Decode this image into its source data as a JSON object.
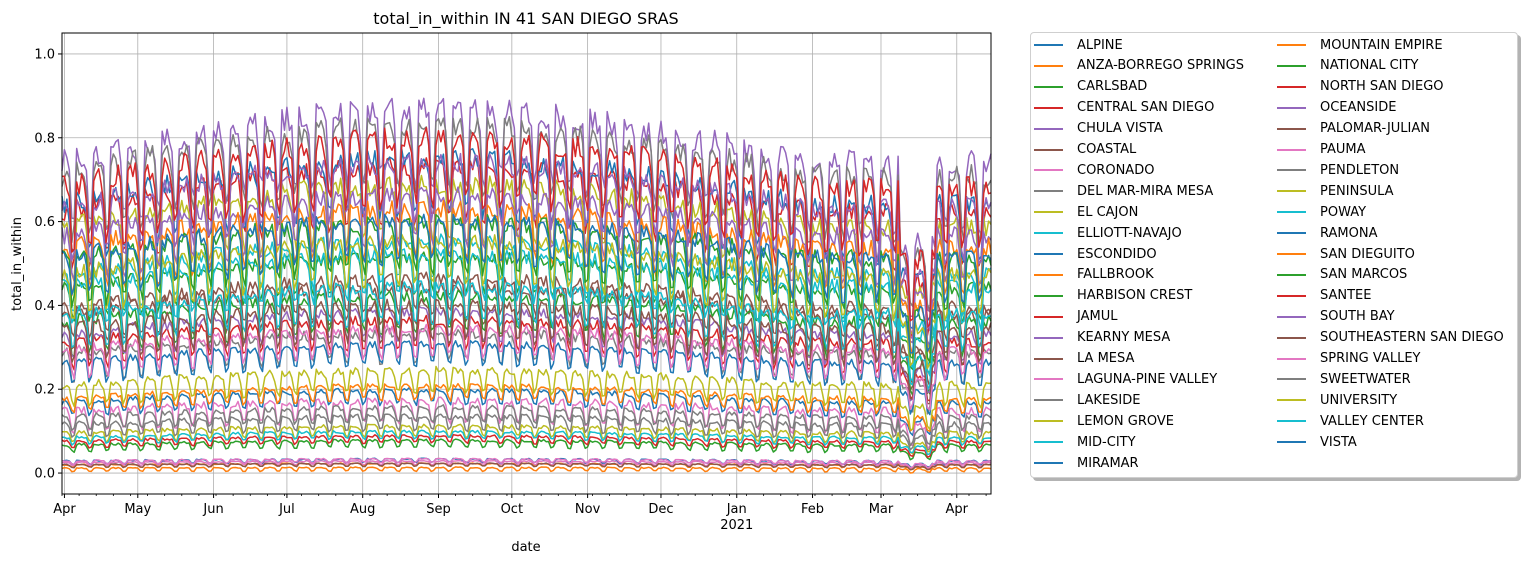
{
  "chart_data": {
    "type": "line",
    "title": "total_in_within IN 41 SAN DIEGO SRAS",
    "xlabel": "date",
    "ylabel": "total_in_within",
    "xlim": [
      "2020-03-31",
      "2021-04-15"
    ],
    "ylim": [
      -0.05,
      1.05
    ],
    "grid": true,
    "legend_position": "outside-right",
    "legend_columns": 2,
    "x_ticks": [
      {
        "date": "2020-04-01",
        "label": "Apr",
        "sub": ""
      },
      {
        "date": "2020-05-01",
        "label": "May",
        "sub": ""
      },
      {
        "date": "2020-06-01",
        "label": "Jun",
        "sub": ""
      },
      {
        "date": "2020-07-01",
        "label": "Jul",
        "sub": ""
      },
      {
        "date": "2020-08-01",
        "label": "Aug",
        "sub": ""
      },
      {
        "date": "2020-09-01",
        "label": "Sep",
        "sub": ""
      },
      {
        "date": "2020-10-01",
        "label": "Oct",
        "sub": ""
      },
      {
        "date": "2020-11-01",
        "label": "Nov",
        "sub": ""
      },
      {
        "date": "2020-12-01",
        "label": "Dec",
        "sub": ""
      },
      {
        "date": "2021-01-01",
        "label": "Jan",
        "sub": "2021"
      },
      {
        "date": "2021-02-01",
        "label": "Feb",
        "sub": ""
      },
      {
        "date": "2021-03-01",
        "label": "Mar",
        "sub": ""
      },
      {
        "date": "2021-04-01",
        "label": "Apr",
        "sub": ""
      }
    ],
    "y_ticks": [
      {
        "value": 0.0,
        "label": "0.0"
      },
      {
        "value": 0.2,
        "label": "0.2"
      },
      {
        "value": 0.4,
        "label": "0.4"
      },
      {
        "value": 0.6,
        "label": "0.6"
      },
      {
        "value": 0.8,
        "label": "0.8"
      },
      {
        "value": 1.0,
        "label": "1.0"
      }
    ],
    "series_approximation_note": "Daily values with weekly oscillation; approximated by mean level, weekly amplitude and seasonal shape estimated from the plot",
    "series": [
      {
        "name": "ALPINE",
        "color": "#1f77b4",
        "level": 0.18,
        "amp": 0.02
      },
      {
        "name": "ANZA-BORREGO SPRINGS",
        "color": "#ff7f0e",
        "level": 0.01,
        "amp": 0.005
      },
      {
        "name": "CARLSBAD",
        "color": "#2ca02c",
        "level": 0.47,
        "amp": 0.05
      },
      {
        "name": "CENTRAL SAN DIEGO",
        "color": "#d62728",
        "level": 0.66,
        "amp": 0.08
      },
      {
        "name": "CHULA VISTA",
        "color": "#9467bd",
        "level": 0.78,
        "amp": 0.1
      },
      {
        "name": "COASTAL",
        "color": "#8c564b",
        "level": 0.42,
        "amp": 0.05
      },
      {
        "name": "CORONADO",
        "color": "#e377c2",
        "level": 0.15,
        "amp": 0.03
      },
      {
        "name": "DEL MAR-MIRA MESA",
        "color": "#7f7f7f",
        "level": 0.75,
        "amp": 0.09
      },
      {
        "name": "EL CAJON",
        "color": "#bcbd22",
        "level": 0.62,
        "amp": 0.08
      },
      {
        "name": "ELLIOTT-NAVAJO",
        "color": "#17becf",
        "level": 0.5,
        "amp": 0.06
      },
      {
        "name": "ESCONDIDO",
        "color": "#1f77b4",
        "level": 0.68,
        "amp": 0.08
      },
      {
        "name": "FALLBROOK",
        "color": "#ff7f0e",
        "level": 0.19,
        "amp": 0.02
      },
      {
        "name": "HARBISON CREST",
        "color": "#2ca02c",
        "level": 0.07,
        "amp": 0.01
      },
      {
        "name": "JAMUL",
        "color": "#d62728",
        "level": 0.08,
        "amp": 0.01
      },
      {
        "name": "KEARNY MESA",
        "color": "#9467bd",
        "level": 0.67,
        "amp": 0.08
      },
      {
        "name": "LA MESA",
        "color": "#8c564b",
        "level": 0.4,
        "amp": 0.05
      },
      {
        "name": "LAGUNA-PINE VALLEY",
        "color": "#e377c2",
        "level": 0.025,
        "amp": 0.005
      },
      {
        "name": "LAKESIDE",
        "color": "#7f7f7f",
        "level": 0.3,
        "amp": 0.04
      },
      {
        "name": "LEMON GROVE",
        "color": "#bcbd22",
        "level": 0.22,
        "amp": 0.03
      },
      {
        "name": "MID-CITY",
        "color": "#17becf",
        "level": 0.47,
        "amp": 0.06
      },
      {
        "name": "MIRAMAR",
        "color": "#1f77b4",
        "level": 0.03,
        "amp": 0.005
      },
      {
        "name": "MOUNTAIN EMPIRE",
        "color": "#ff7f0e",
        "level": 0.02,
        "amp": 0.004
      },
      {
        "name": "NATIONAL CITY",
        "color": "#2ca02c",
        "level": 0.38,
        "amp": 0.05
      },
      {
        "name": "NORTH SAN DIEGO",
        "color": "#d62728",
        "level": 0.72,
        "amp": 0.09
      },
      {
        "name": "OCEANSIDE",
        "color": "#9467bd",
        "level": 0.6,
        "amp": 0.07
      },
      {
        "name": "PALOMAR-JULIAN",
        "color": "#8c564b",
        "level": 0.02,
        "amp": 0.004
      },
      {
        "name": "PAUMA",
        "color": "#e377c2",
        "level": 0.03,
        "amp": 0.005
      },
      {
        "name": "PENDLETON",
        "color": "#7f7f7f",
        "level": 0.14,
        "amp": 0.02
      },
      {
        "name": "PENINSULA",
        "color": "#bcbd22",
        "level": 0.5,
        "amp": 0.06
      },
      {
        "name": "POWAY",
        "color": "#17becf",
        "level": 0.4,
        "amp": 0.05
      },
      {
        "name": "RAMONA",
        "color": "#1f77b4",
        "level": 0.28,
        "amp": 0.03
      },
      {
        "name": "SAN DIEGUITO",
        "color": "#ff7f0e",
        "level": 0.57,
        "amp": 0.07
      },
      {
        "name": "SAN MARCOS",
        "color": "#2ca02c",
        "level": 0.54,
        "amp": 0.07
      },
      {
        "name": "SANTEE",
        "color": "#d62728",
        "level": 0.33,
        "amp": 0.04
      },
      {
        "name": "SOUTH BAY",
        "color": "#9467bd",
        "level": 0.35,
        "amp": 0.04
      },
      {
        "name": "SOUTHEASTERN SAN DIEGO",
        "color": "#8c564b",
        "level": 0.36,
        "amp": 0.05
      },
      {
        "name": "SPRING VALLEY",
        "color": "#e377c2",
        "level": 0.31,
        "amp": 0.04
      },
      {
        "name": "SWEETWATER",
        "color": "#7f7f7f",
        "level": 0.12,
        "amp": 0.02
      },
      {
        "name": "UNIVERSITY",
        "color": "#bcbd22",
        "level": 0.1,
        "amp": 0.015
      },
      {
        "name": "VALLEY CENTER",
        "color": "#17becf",
        "level": 0.09,
        "amp": 0.01
      },
      {
        "name": "VISTA",
        "color": "#1f77b4",
        "level": 0.55,
        "amp": 0.06
      }
    ]
  }
}
